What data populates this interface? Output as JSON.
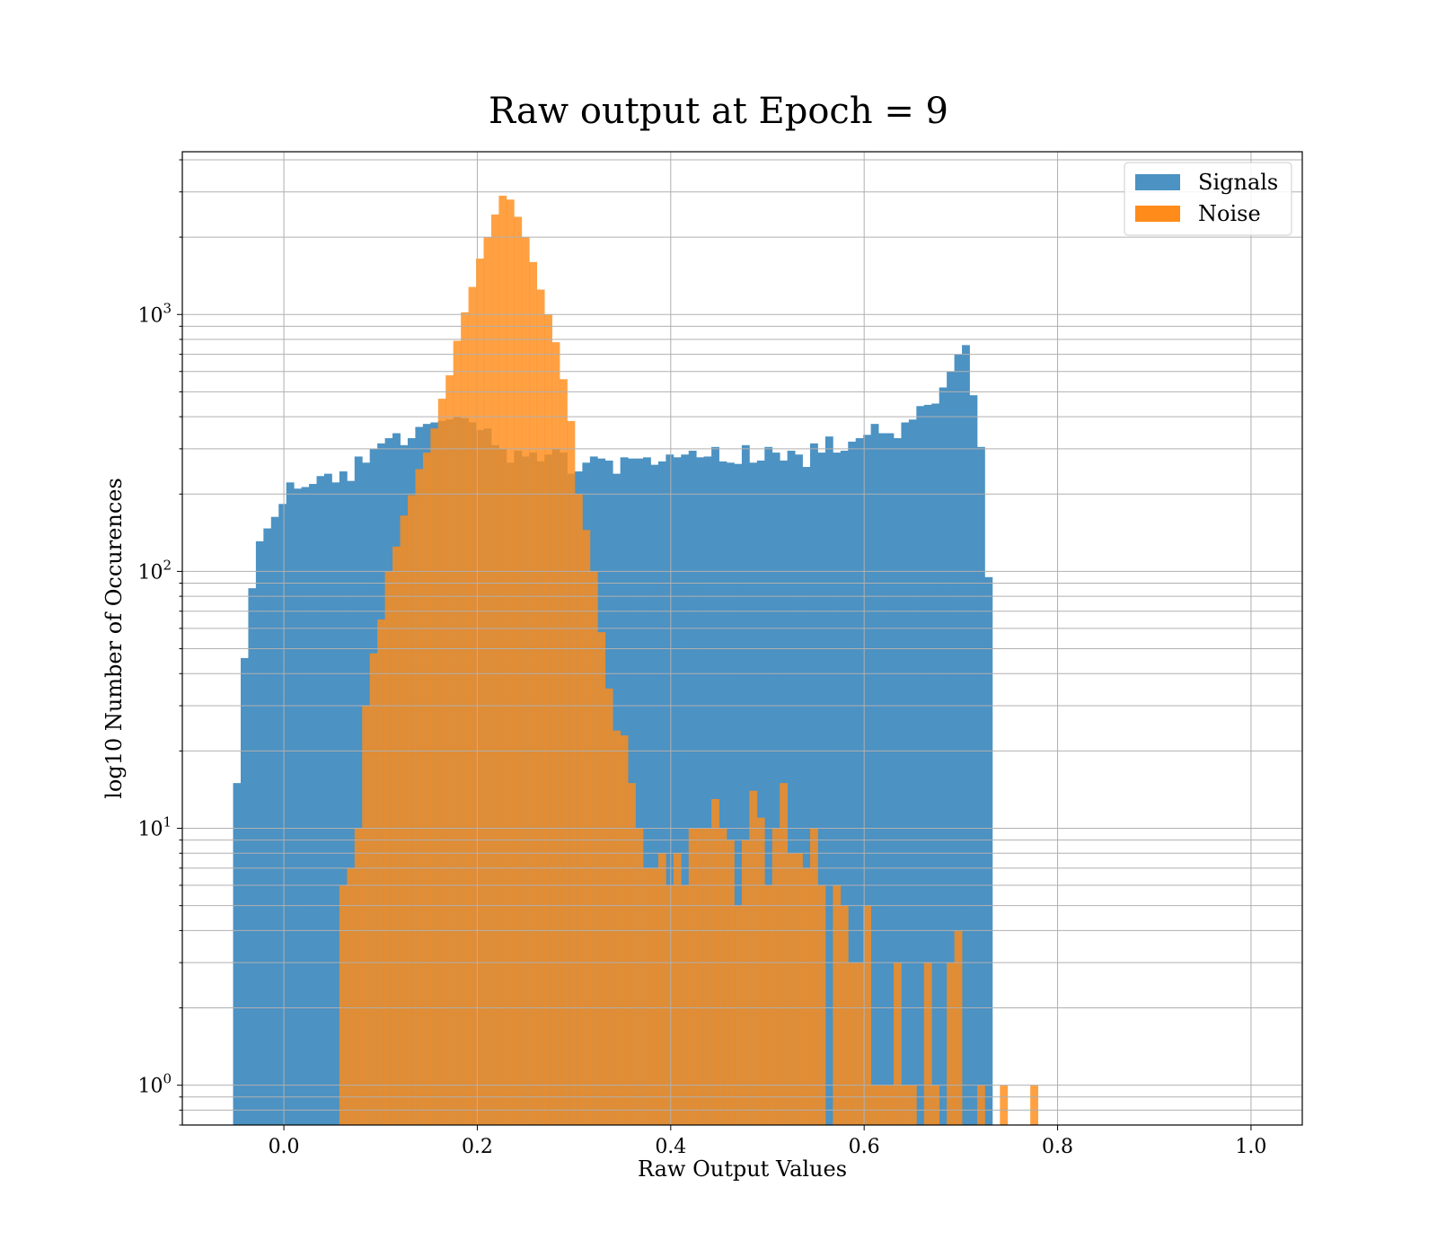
{
  "chart_data": {
    "type": "bar",
    "title": "Raw output at Epoch = 9",
    "xlabel": "Raw Output Values",
    "ylabel": "log10 Number of Occurences",
    "yscale": "log",
    "xlim": [
      -0.105,
      1.053
    ],
    "ylim": [
      0.7,
      4300
    ],
    "x_ticks": [
      0.0,
      0.2,
      0.4,
      0.6,
      0.8,
      1.0
    ],
    "x_tick_labels": [
      "0.0",
      "0.2",
      "0.4",
      "0.6",
      "0.8",
      "1.0"
    ],
    "y_ticks": [
      1,
      10,
      100,
      1000
    ],
    "y_tick_base": "10",
    "y_tick_exponents": [
      "0",
      "1",
      "2",
      "3"
    ],
    "grid": true,
    "legend_position": "top-right",
    "bin_start": -0.0525,
    "bin_width": 0.00785,
    "series": [
      {
        "name": "Signals",
        "color": "#4c92c3",
        "values": [
          15,
          46,
          86,
          131,
          147,
          163,
          183,
          222,
          210,
          213,
          219,
          235,
          240,
          222,
          245,
          225,
          280,
          265,
          300,
          315,
          330,
          345,
          310,
          330,
          365,
          375,
          380,
          385,
          390,
          400,
          395,
          380,
          355,
          360,
          310,
          300,
          265,
          295,
          280,
          290,
          268,
          285,
          300,
          290,
          240,
          245,
          265,
          280,
          275,
          270,
          240,
          278,
          275,
          275,
          278,
          260,
          268,
          285,
          278,
          285,
          295,
          278,
          280,
          305,
          268,
          265,
          262,
          310,
          265,
          270,
          305,
          290,
          270,
          295,
          285,
          255,
          315,
          290,
          335,
          290,
          295,
          320,
          330,
          340,
          375,
          345,
          345,
          330,
          380,
          390,
          440,
          445,
          450,
          520,
          600,
          700,
          760,
          485,
          305,
          95
        ]
      },
      {
        "name": "Noise",
        "color": "#ff8c1a",
        "values": [
          0,
          0,
          0,
          0,
          0,
          0,
          0,
          0,
          0,
          0,
          0,
          0,
          0,
          0,
          6,
          7,
          10,
          30,
          48,
          65,
          100,
          125,
          165,
          198,
          250,
          290,
          360,
          470,
          580,
          790,
          1020,
          1280,
          1650,
          2000,
          2450,
          2900,
          2800,
          2400,
          2000,
          1600,
          1250,
          1000,
          780,
          560,
          385,
          200,
          145,
          100,
          58,
          35,
          24,
          23,
          15,
          10,
          7,
          7,
          8,
          6,
          8,
          6,
          10,
          10,
          10,
          13,
          10,
          9,
          5,
          9,
          14,
          11,
          6,
          10,
          15,
          8,
          8,
          7,
          10,
          6,
          0,
          6,
          5,
          3,
          3,
          5,
          1,
          1,
          1,
          3,
          1,
          1,
          0,
          3,
          1,
          0,
          3,
          4,
          0,
          0,
          1,
          0,
          0,
          1,
          0,
          0,
          0,
          1,
          0,
          0,
          0,
          0
        ]
      }
    ]
  }
}
